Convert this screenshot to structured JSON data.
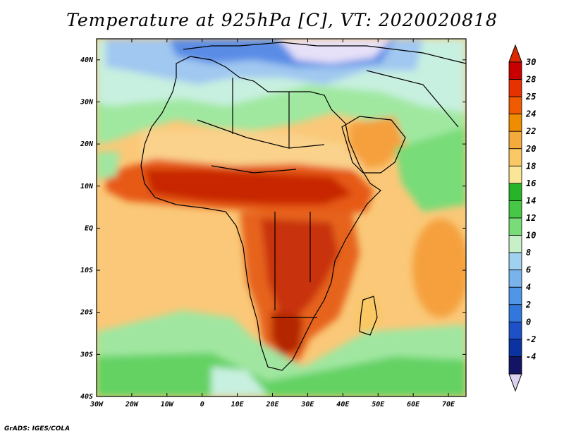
{
  "title": "Temperature at 925hPa [C], VT: 2020020818",
  "credit": "GrADS: IGES/COLA",
  "map": {
    "variable": "Temperature at 925hPa",
    "units": "C",
    "valid_time": "2020020818",
    "lon_range": [
      -30,
      75
    ],
    "lat_range": [
      -40,
      45
    ],
    "lon_ticks": [
      "30W",
      "20W",
      "10W",
      "0",
      "10E",
      "20E",
      "30E",
      "40E",
      "50E",
      "60E",
      "70E"
    ],
    "lat_ticks": [
      "40N",
      "30N",
      "20N",
      "10N",
      "EQ",
      "10S",
      "20S",
      "30S",
      "40S"
    ]
  },
  "colorbar": {
    "labels": [
      "30",
      "28",
      "25",
      "24",
      "22",
      "20",
      "18",
      "16",
      "14",
      "12",
      "10",
      "8",
      "6",
      "4",
      "2",
      "0",
      "-2",
      "-4"
    ],
    "colors": [
      "#c80000",
      "#e63200",
      "#f05a00",
      "#f08c00",
      "#f5aa3c",
      "#fac864",
      "#fae696",
      "#28b428",
      "#46c846",
      "#78dc78",
      "#c8f0c8",
      "#a0d2f0",
      "#78b4eb",
      "#5096e6",
      "#3278dc",
      "#1e50c8",
      "#0a32a0",
      "#141464"
    ],
    "top_color": "#dc2800",
    "bottom_color": "#dcd2f0"
  },
  "palette": {
    "hot": "#c82800",
    "warm": "#f5a03c",
    "ocean": "#fac878",
    "cool_green": "#78dc78",
    "cold_blue": "#5a8ce6",
    "frost": "#e6e0f8"
  }
}
